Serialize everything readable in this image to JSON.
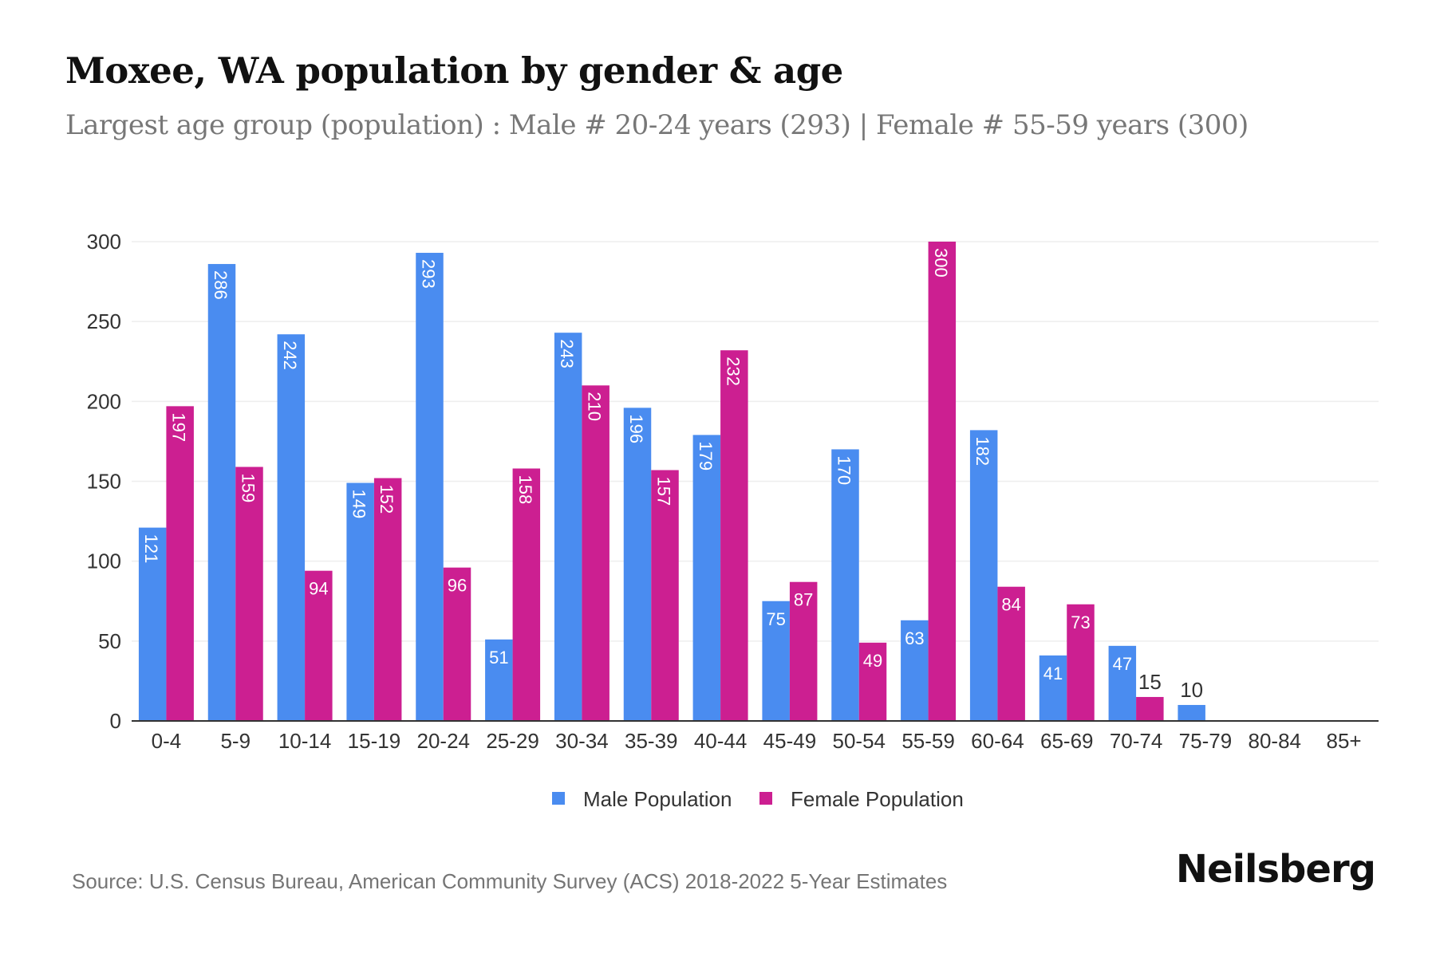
{
  "header": {
    "title": "Moxee, WA population by gender & age",
    "subtitle": "Largest age group (population) : Male # 20-24 years (293) | Female # 55-59 years (300)"
  },
  "footer": {
    "source": "Source: U.S. Census Bureau, American Community Survey (ACS) 2018-2022 5-Year Estimates",
    "brand": "Neilsberg"
  },
  "colors": {
    "male": "#4A8CF0",
    "female": "#CC1F91",
    "grid": "#eeeeee",
    "axis": "#333333",
    "tick_text": "#333333",
    "label_inside": "#ffffff",
    "label_outside": "#333333"
  },
  "chart_data": {
    "type": "bar",
    "categories": [
      "0-4",
      "5-9",
      "10-14",
      "15-19",
      "20-24",
      "25-29",
      "30-34",
      "35-39",
      "40-44",
      "45-49",
      "50-54",
      "55-59",
      "60-64",
      "65-69",
      "70-74",
      "75-79",
      "80-84",
      "85+"
    ],
    "series": [
      {
        "name": "Male Population",
        "values": [
          121,
          286,
          242,
          149,
          293,
          51,
          243,
          196,
          179,
          75,
          170,
          63,
          182,
          41,
          47,
          10,
          0,
          0
        ]
      },
      {
        "name": "Female Population",
        "values": [
          197,
          159,
          94,
          152,
          96,
          158,
          210,
          157,
          232,
          87,
          49,
          300,
          84,
          73,
          15,
          0,
          0,
          0
        ]
      }
    ],
    "yticks": [
      0,
      50,
      100,
      150,
      200,
      250,
      300
    ],
    "ylim": [
      0,
      300
    ],
    "grid": true,
    "legend_position": "bottom-center"
  }
}
